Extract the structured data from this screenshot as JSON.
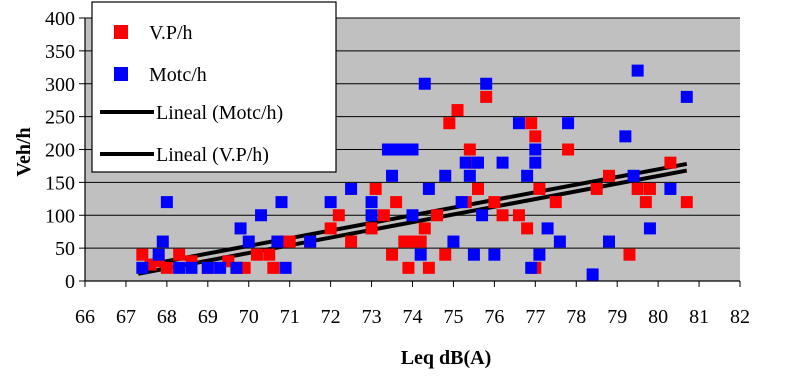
{
  "chart_data": {
    "type": "scatter",
    "xlabel": "Leq dB(A)",
    "ylabel": "Veh/h",
    "xlim": [
      66,
      82
    ],
    "ylim": [
      0,
      400
    ],
    "xticks": [
      "66",
      "67",
      "68",
      "69",
      "70",
      "71",
      "72",
      "73",
      "74",
      "75",
      "76",
      "77",
      "78",
      "79",
      "80",
      "81",
      "82"
    ],
    "yticks": [
      "0",
      "50",
      "100",
      "150",
      "200",
      "250",
      "300",
      "350",
      "400"
    ],
    "grid": true,
    "plot_background": "#c0c0c0",
    "legend_position": "top-left",
    "series": [
      {
        "name": "V.P/h",
        "color": "#ff0000",
        "marker": "square",
        "points": [
          [
            67.4,
            40
          ],
          [
            67.6,
            25
          ],
          [
            67.8,
            30
          ],
          [
            68.0,
            20
          ],
          [
            68.3,
            40
          ],
          [
            68.6,
            30
          ],
          [
            69.0,
            20
          ],
          [
            69.5,
            30
          ],
          [
            69.7,
            20
          ],
          [
            69.9,
            20
          ],
          [
            70.2,
            40
          ],
          [
            70.5,
            40
          ],
          [
            70.6,
            20
          ],
          [
            70.8,
            60
          ],
          [
            71.0,
            60
          ],
          [
            71.5,
            60
          ],
          [
            72.0,
            80
          ],
          [
            72.2,
            100
          ],
          [
            72.5,
            60
          ],
          [
            73.0,
            80
          ],
          [
            73.1,
            140
          ],
          [
            73.3,
            100
          ],
          [
            73.5,
            40
          ],
          [
            73.6,
            120
          ],
          [
            73.8,
            60
          ],
          [
            73.9,
            20
          ],
          [
            74.0,
            60
          ],
          [
            74.2,
            60
          ],
          [
            74.3,
            80
          ],
          [
            74.4,
            20
          ],
          [
            74.6,
            100
          ],
          [
            74.8,
            40
          ],
          [
            74.9,
            240
          ],
          [
            75.1,
            260
          ],
          [
            75.3,
            120
          ],
          [
            75.4,
            200
          ],
          [
            75.5,
            180
          ],
          [
            75.6,
            140
          ],
          [
            75.8,
            280
          ],
          [
            76.0,
            120
          ],
          [
            76.2,
            100
          ],
          [
            76.6,
            100
          ],
          [
            76.8,
            80
          ],
          [
            76.9,
            240
          ],
          [
            77.0,
            220
          ],
          [
            77.0,
            20
          ],
          [
            77.1,
            140
          ],
          [
            77.5,
            120
          ],
          [
            77.8,
            200
          ],
          [
            78.5,
            140
          ],
          [
            78.8,
            160
          ],
          [
            79.3,
            40
          ],
          [
            79.5,
            140
          ],
          [
            79.7,
            120
          ],
          [
            79.8,
            140
          ],
          [
            80.3,
            180
          ],
          [
            80.7,
            120
          ]
        ]
      },
      {
        "name": "Motc/h",
        "color": "#0000ff",
        "marker": "square",
        "points": [
          [
            67.4,
            20
          ],
          [
            67.8,
            40
          ],
          [
            67.9,
            60
          ],
          [
            68.0,
            120
          ],
          [
            68.3,
            20
          ],
          [
            68.6,
            20
          ],
          [
            69.0,
            20
          ],
          [
            69.3,
            20
          ],
          [
            69.7,
            20
          ],
          [
            69.8,
            80
          ],
          [
            70.0,
            60
          ],
          [
            70.3,
            100
          ],
          [
            70.7,
            60
          ],
          [
            70.9,
            20
          ],
          [
            70.8,
            120
          ],
          [
            71.5,
            60
          ],
          [
            72.0,
            120
          ],
          [
            72.5,
            140
          ],
          [
            73.0,
            100
          ],
          [
            73.0,
            120
          ],
          [
            73.4,
            200
          ],
          [
            73.6,
            200
          ],
          [
            73.5,
            160
          ],
          [
            73.8,
            200
          ],
          [
            74.0,
            200
          ],
          [
            74.0,
            100
          ],
          [
            74.2,
            40
          ],
          [
            74.3,
            300
          ],
          [
            74.4,
            140
          ],
          [
            74.8,
            160
          ],
          [
            75.0,
            60
          ],
          [
            75.2,
            120
          ],
          [
            75.3,
            180
          ],
          [
            75.4,
            160
          ],
          [
            75.5,
            40
          ],
          [
            75.6,
            180
          ],
          [
            75.7,
            100
          ],
          [
            75.8,
            300
          ],
          [
            76.0,
            40
          ],
          [
            76.2,
            180
          ],
          [
            76.6,
            240
          ],
          [
            76.8,
            160
          ],
          [
            76.9,
            20
          ],
          [
            77.0,
            180
          ],
          [
            77.0,
            200
          ],
          [
            77.1,
            40
          ],
          [
            77.3,
            80
          ],
          [
            77.6,
            60
          ],
          [
            77.8,
            240
          ],
          [
            78.4,
            10
          ],
          [
            78.8,
            60
          ],
          [
            79.2,
            220
          ],
          [
            79.4,
            160
          ],
          [
            79.5,
            320
          ],
          [
            79.8,
            80
          ],
          [
            80.3,
            140
          ],
          [
            80.7,
            280
          ]
        ]
      },
      {
        "name": "Lineal (Motc/h)",
        "color": "#000000",
        "type": "trendline",
        "points": [
          [
            67.3,
            11
          ],
          [
            80.7,
            168
          ]
        ]
      },
      {
        "name": "Lineal (V.P/h)",
        "color": "#000000",
        "type": "trendline",
        "points": [
          [
            67.3,
            22
          ],
          [
            80.7,
            178
          ]
        ]
      }
    ]
  }
}
